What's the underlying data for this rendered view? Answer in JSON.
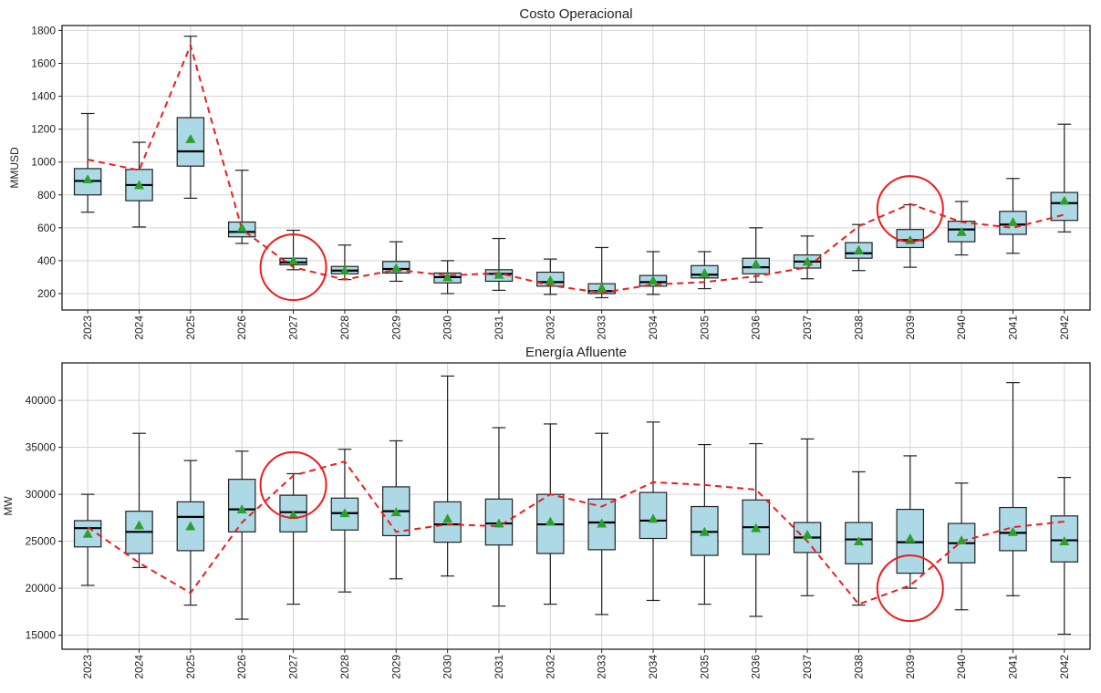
{
  "chart_data": [
    {
      "type": "box",
      "title": "Costo Operacional",
      "xlabel": "",
      "ylabel": "MMUSD",
      "ylim": [
        100,
        1830
      ],
      "yticks": [
        200,
        400,
        600,
        800,
        1000,
        1200,
        1400,
        1600,
        1800
      ],
      "grid": true,
      "categories": [
        "2023",
        "2024",
        "2025",
        "2026",
        "2027",
        "2028",
        "2029",
        "2030",
        "2031",
        "2032",
        "2033",
        "2034",
        "2035",
        "2036",
        "2037",
        "2038",
        "2039",
        "2040",
        "2041",
        "2042"
      ],
      "boxes": [
        {
          "min": 695,
          "q1": 800,
          "median": 885,
          "q3": 960,
          "max": 1295,
          "mean": 895
        },
        {
          "min": 605,
          "q1": 765,
          "median": 860,
          "q3": 955,
          "max": 1120,
          "mean": 860
        },
        {
          "min": 780,
          "q1": 975,
          "median": 1065,
          "q3": 1270,
          "max": 1765,
          "mean": 1140
        },
        {
          "min": 505,
          "q1": 545,
          "median": 575,
          "q3": 635,
          "max": 950,
          "mean": 600
        },
        {
          "min": 345,
          "q1": 375,
          "median": 390,
          "q3": 415,
          "max": 585,
          "mean": 400
        },
        {
          "min": 285,
          "q1": 320,
          "median": 340,
          "q3": 365,
          "max": 495,
          "mean": 340
        },
        {
          "min": 275,
          "q1": 325,
          "median": 350,
          "q3": 395,
          "max": 515,
          "mean": 355
        },
        {
          "min": 200,
          "q1": 265,
          "median": 300,
          "q3": 325,
          "max": 400,
          "mean": 300
        },
        {
          "min": 220,
          "q1": 275,
          "median": 320,
          "q3": 345,
          "max": 535,
          "mean": 315
        },
        {
          "min": 195,
          "q1": 245,
          "median": 270,
          "q3": 330,
          "max": 410,
          "mean": 280
        },
        {
          "min": 175,
          "q1": 200,
          "median": 215,
          "q3": 260,
          "max": 480,
          "mean": 235
        },
        {
          "min": 195,
          "q1": 245,
          "median": 270,
          "q3": 310,
          "max": 455,
          "mean": 280
        },
        {
          "min": 230,
          "q1": 295,
          "median": 315,
          "q3": 370,
          "max": 455,
          "mean": 325
        },
        {
          "min": 270,
          "q1": 320,
          "median": 360,
          "q3": 415,
          "max": 600,
          "mean": 380
        },
        {
          "min": 290,
          "q1": 355,
          "median": 395,
          "q3": 435,
          "max": 550,
          "mean": 395
        },
        {
          "min": 340,
          "q1": 415,
          "median": 445,
          "q3": 510,
          "max": 620,
          "mean": 465
        },
        {
          "min": 360,
          "q1": 480,
          "median": 525,
          "q3": 590,
          "max": 740,
          "mean": 525
        },
        {
          "min": 435,
          "q1": 515,
          "median": 590,
          "q3": 640,
          "max": 760,
          "mean": 575
        },
        {
          "min": 445,
          "q1": 560,
          "median": 620,
          "q3": 700,
          "max": 900,
          "mean": 635
        },
        {
          "min": 575,
          "q1": 645,
          "median": 750,
          "q3": 815,
          "max": 1230,
          "mean": 765
        }
      ],
      "line": {
        "color": "#ee1c1c",
        "style": "dashed",
        "values": [
          1015,
          950,
          1710,
          590,
          360,
          285,
          345,
          310,
          325,
          250,
          205,
          255,
          270,
          305,
          360,
          610,
          745,
          635,
          600,
          680
        ]
      },
      "highlight_circles": [
        {
          "category": "2027",
          "value": 360
        },
        {
          "category": "2039",
          "value": 715
        }
      ]
    },
    {
      "type": "box",
      "title": "Energía Afluente",
      "xlabel": "",
      "ylabel": "MW",
      "ylim": [
        13500,
        44000
      ],
      "yticks": [
        15000,
        20000,
        25000,
        30000,
        35000,
        40000
      ],
      "grid": true,
      "categories": [
        "2023",
        "2024",
        "2025",
        "2026",
        "2027",
        "2028",
        "2029",
        "2030",
        "2031",
        "2032",
        "2033",
        "2034",
        "2035",
        "2036",
        "2037",
        "2038",
        "2039",
        "2040",
        "2041",
        "2042"
      ],
      "boxes": [
        {
          "min": 20300,
          "q1": 24400,
          "median": 26400,
          "q3": 27200,
          "max": 30000,
          "mean": 25800
        },
        {
          "min": 22200,
          "q1": 23700,
          "median": 26000,
          "q3": 28200,
          "max": 36500,
          "mean": 26700
        },
        {
          "min": 18200,
          "q1": 24000,
          "median": 27600,
          "q3": 29200,
          "max": 33600,
          "mean": 26600
        },
        {
          "min": 16700,
          "q1": 26000,
          "median": 28400,
          "q3": 31600,
          "max": 34600,
          "mean": 28400
        },
        {
          "min": 18300,
          "q1": 26000,
          "median": 28100,
          "q3": 29900,
          "max": 32200,
          "mean": 27800
        },
        {
          "min": 19600,
          "q1": 26200,
          "median": 28000,
          "q3": 29600,
          "max": 34800,
          "mean": 28000
        },
        {
          "min": 21000,
          "q1": 25600,
          "median": 28200,
          "q3": 30800,
          "max": 35700,
          "mean": 28100
        },
        {
          "min": 21300,
          "q1": 24900,
          "median": 26800,
          "q3": 29200,
          "max": 42600,
          "mean": 27400
        },
        {
          "min": 18100,
          "q1": 24600,
          "median": 26900,
          "q3": 29500,
          "max": 37100,
          "mean": 26900
        },
        {
          "min": 18300,
          "q1": 23700,
          "median": 26800,
          "q3": 30000,
          "max": 37500,
          "mean": 27100
        },
        {
          "min": 17200,
          "q1": 24100,
          "median": 27000,
          "q3": 29500,
          "max": 36500,
          "mean": 26900
        },
        {
          "min": 18700,
          "q1": 25300,
          "median": 27200,
          "q3": 30200,
          "max": 37700,
          "mean": 27400
        },
        {
          "min": 18300,
          "q1": 23500,
          "median": 26000,
          "q3": 28700,
          "max": 35300,
          "mean": 26000
        },
        {
          "min": 17000,
          "q1": 23600,
          "median": 26500,
          "q3": 29400,
          "max": 35400,
          "mean": 26400
        },
        {
          "min": 19200,
          "q1": 23800,
          "median": 25400,
          "q3": 27000,
          "max": 35900,
          "mean": 25700
        },
        {
          "min": 18200,
          "q1": 22600,
          "median": 25200,
          "q3": 27000,
          "max": 32400,
          "mean": 25000
        },
        {
          "min": 20000,
          "q1": 21600,
          "median": 24900,
          "q3": 28400,
          "max": 34100,
          "mean": 25300
        },
        {
          "min": 17700,
          "q1": 22700,
          "median": 24800,
          "q3": 26900,
          "max": 31200,
          "mean": 25100
        },
        {
          "min": 19200,
          "q1": 24000,
          "median": 25900,
          "q3": 28600,
          "max": 41900,
          "mean": 26000
        },
        {
          "min": 15100,
          "q1": 22800,
          "median": 25100,
          "q3": 27700,
          "max": 31800,
          "mean": 25000
        }
      ],
      "line": {
        "color": "#ee1c1c",
        "style": "dashed",
        "values": [
          26500,
          22700,
          19500,
          27000,
          32000,
          33500,
          26000,
          26800,
          26600,
          30000,
          28700,
          31300,
          31000,
          30500,
          25000,
          18300,
          20300,
          25000,
          26500,
          27100
        ]
      },
      "highlight_circles": [
        {
          "category": "2027",
          "value": 31000
        },
        {
          "category": "2039",
          "value": 20000
        }
      ]
    }
  ],
  "colors": {
    "box_fill": "#add8e6",
    "box_edge": "#222222",
    "median": "#000000",
    "mean_marker": "#2ca02c",
    "line": "#ee1c1c",
    "circle": "#ee1c1c",
    "grid": "#d3d3d3",
    "frame": "#222222"
  }
}
